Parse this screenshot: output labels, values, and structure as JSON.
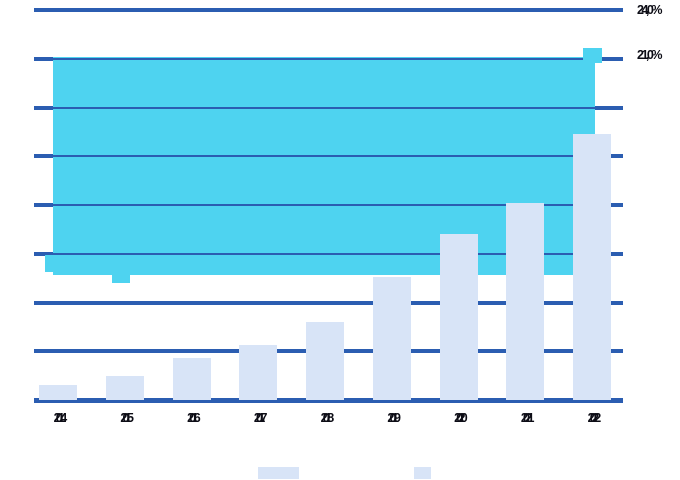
{
  "chart_data": {
    "type": "combo",
    "title": "",
    "categories": [
      "2014",
      "2015",
      "2016",
      "2017",
      "2018",
      "2019",
      "2020",
      "2021",
      "2022"
    ],
    "series": [
      {
        "name": "bar-series",
        "type": "bar",
        "color": "#d8e4f7",
        "values": [
          0.9,
          1.5,
          2.6,
          3.4,
          4.8,
          7.6,
          10.2,
          12.1,
          16.4
        ]
      },
      {
        "name": "area-series",
        "type": "area",
        "color": "#4ed3f0",
        "top_value": 21.0,
        "baseline_value": 7.7,
        "last_point_marker": true
      }
    ],
    "ylim": [
      0,
      24
    ],
    "grid_step": 3,
    "grid_on": true,
    "axis_color": "#2b5db1",
    "text_color": "#0d0d16",
    "right_labels": [
      {
        "text": "24,0%",
        "value": 24.0
      },
      {
        "text": "21,0%",
        "value": 21.0
      }
    ],
    "legend_position": "bottom",
    "legend_swatches": [
      {
        "color": "#d8e4f7"
      },
      {
        "color": "#d8e4f7"
      }
    ]
  }
}
